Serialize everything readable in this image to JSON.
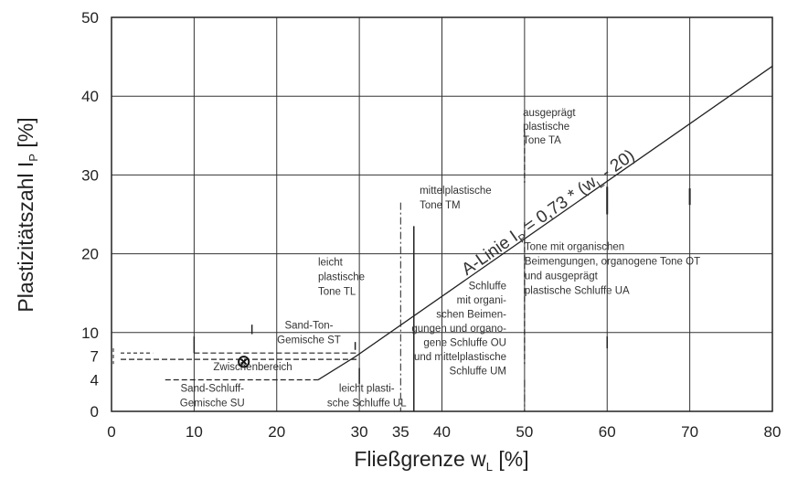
{
  "chart_data": {
    "type": "line",
    "xlabel": "Fließgrenze w",
    "xlabel_sub": "L",
    "xlabel_unit": "[%]",
    "ylabel": "Plastizitätszahl I",
    "ylabel_sub": "P",
    "ylabel_unit": "[%]",
    "xlim": [
      0,
      80
    ],
    "ylim": [
      0,
      50
    ],
    "grid": true,
    "x_ticks": [
      "0",
      "10",
      "20",
      "30",
      "35",
      "40",
      "50",
      "60",
      "70",
      "80"
    ],
    "y_ticks": [
      "0",
      "4",
      "7",
      "10",
      "20",
      "30",
      "40",
      "50"
    ],
    "a_line": {
      "label_main": "A-Linie I",
      "label_sub1": "P",
      "label_mid": " = 0,73 * (w",
      "label_sub2": "L",
      "label_end": " - 20)",
      "points": [
        [
          25,
          4
        ],
        [
          29.6,
          7
        ],
        [
          80,
          43.8
        ]
      ]
    },
    "regions": [
      {
        "lines": [
          "ausgeprägt",
          "plastische",
          "Tone TA"
        ]
      },
      {
        "lines": [
          "mittelplastische",
          "Tone TM"
        ]
      },
      {
        "lines": [
          "leicht",
          "plastische",
          "Tone TL"
        ]
      },
      {
        "lines": [
          "Tone mit organischen",
          "Beimengungen, organogene Tone OT",
          "und ausgeprägt",
          "plastische Schluffe UA"
        ]
      },
      {
        "lines": [
          "Schluffe",
          "mit organi-",
          "schen Beimen-",
          "gungen und organo-",
          "gene Schluffe OU",
          "und mittelplastische",
          "Schluffe UM"
        ]
      },
      {
        "lines": [
          "Sand-Ton-",
          "Gemische ST"
        ]
      },
      {
        "lines": [
          "Zwischenbereich"
        ]
      },
      {
        "lines": [
          "Sand-Schluff-",
          "Gemische SU"
        ]
      },
      {
        "lines": [
          "leicht plasti-",
          "sche Schluffe UL"
        ]
      }
    ],
    "marker": {
      "symbol": "⊗",
      "x": 16,
      "y": 6.5
    }
  }
}
